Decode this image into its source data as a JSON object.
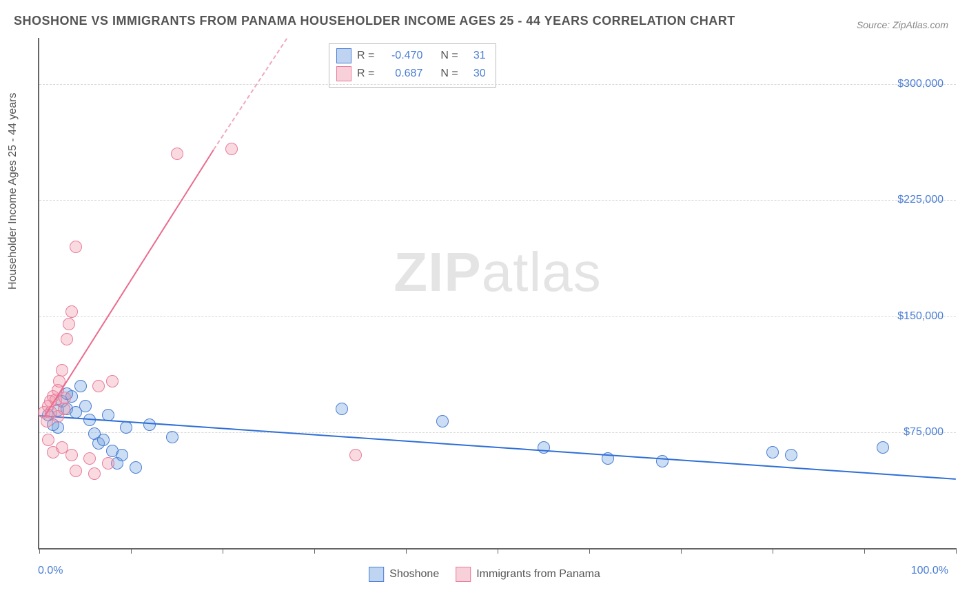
{
  "title": "SHOSHONE VS IMMIGRANTS FROM PANAMA HOUSEHOLDER INCOME AGES 25 - 44 YEARS CORRELATION CHART",
  "source": "Source: ZipAtlas.com",
  "ylabel": "Householder Income Ages 25 - 44 years",
  "watermark_bold": "ZIP",
  "watermark_light": "atlas",
  "chart": {
    "type": "scatter",
    "xlim": [
      0,
      100
    ],
    "ylim": [
      0,
      330000
    ],
    "background_color": "#ffffff",
    "grid_color": "#d8d8d8",
    "axis_color": "#666666",
    "label_color": "#4a7dd4",
    "title_color": "#555555",
    "title_fontsize": 18,
    "label_fontsize": 16,
    "marker_size": 16,
    "x_axis": {
      "min_label": "0.0%",
      "max_label": "100.0%",
      "tick_positions": [
        0,
        10,
        20,
        30,
        40,
        50,
        60,
        70,
        80,
        90,
        100
      ]
    },
    "y_axis": {
      "gridlines": [
        {
          "value": 75000,
          "label": "$75,000"
        },
        {
          "value": 150000,
          "label": "$150,000"
        },
        {
          "value": 225000,
          "label": "$225,000"
        },
        {
          "value": 300000,
          "label": "$300,000"
        }
      ]
    },
    "stats": [
      {
        "color": "blue",
        "r_label": "R =",
        "r": "-0.470",
        "n_label": "N =",
        "n": "31"
      },
      {
        "color": "pink",
        "r_label": "R =",
        "r": "0.687",
        "n_label": "N =",
        "n": "30"
      }
    ],
    "series": [
      {
        "name": "Shoshone",
        "color": "blue",
        "fill": "rgba(110,160,222,0.35)",
        "stroke": "#4a7dd4",
        "trend": {
          "x1": 0,
          "y1": 86000,
          "x2": 100,
          "y2": 45000,
          "stroke": "#2e6fd6"
        },
        "points": [
          [
            1,
            86000
          ],
          [
            2,
            89000
          ],
          [
            2.5,
            95000
          ],
          [
            3,
            90000
          ],
          [
            3.5,
            98000
          ],
          [
            4,
            88000
          ],
          [
            4.5,
            105000
          ],
          [
            5,
            92000
          ],
          [
            5.5,
            83000
          ],
          [
            6,
            74000
          ],
          [
            6.5,
            68000
          ],
          [
            7,
            70000
          ],
          [
            7.5,
            86000
          ],
          [
            8,
            63000
          ],
          [
            8.5,
            55000
          ],
          [
            9,
            60000
          ],
          [
            9.5,
            78000
          ],
          [
            10.5,
            52000
          ],
          [
            12,
            80000
          ],
          [
            14.5,
            72000
          ],
          [
            33,
            90000
          ],
          [
            44,
            82000
          ],
          [
            55,
            65000
          ],
          [
            62,
            58000
          ],
          [
            68,
            56000
          ],
          [
            80,
            62000
          ],
          [
            82,
            60000
          ],
          [
            92,
            65000
          ],
          [
            3,
            100000
          ],
          [
            2,
            78000
          ],
          [
            1.5,
            80000
          ]
        ]
      },
      {
        "name": "Immigrants from Panama",
        "color": "pink",
        "fill": "rgba(240,150,170,0.35)",
        "stroke": "#e87c9a",
        "trend": {
          "x1": 0.5,
          "y1": 85000,
          "x2": 19,
          "y2": 258000,
          "stroke": "#ea6b8e",
          "dashed_continuation": {
            "x2": 27,
            "y2": 330000
          }
        },
        "points": [
          [
            0.5,
            88000
          ],
          [
            1,
            92000
          ],
          [
            1.2,
            95000
          ],
          [
            1.5,
            98000
          ],
          [
            1.8,
            96000
          ],
          [
            2,
            102000
          ],
          [
            2.2,
            108000
          ],
          [
            2.5,
            115000
          ],
          [
            2.8,
            97000
          ],
          [
            3,
            135000
          ],
          [
            3.2,
            145000
          ],
          [
            3.5,
            153000
          ],
          [
            4,
            195000
          ],
          [
            6.5,
            105000
          ],
          [
            8,
            108000
          ],
          [
            15,
            255000
          ],
          [
            21,
            258000
          ],
          [
            1,
            70000
          ],
          [
            1.5,
            62000
          ],
          [
            2.5,
            65000
          ],
          [
            3.5,
            60000
          ],
          [
            4,
            50000
          ],
          [
            5.5,
            58000
          ],
          [
            6,
            48000
          ],
          [
            7.5,
            55000
          ],
          [
            2,
            85000
          ],
          [
            1.3,
            88000
          ],
          [
            0.8,
            82000
          ],
          [
            34.5,
            60000
          ],
          [
            2.7,
            90000
          ]
        ]
      }
    ],
    "legend": [
      {
        "swatch": "blue",
        "label": "Shoshone"
      },
      {
        "swatch": "pink",
        "label": "Immigrants from Panama"
      }
    ]
  }
}
